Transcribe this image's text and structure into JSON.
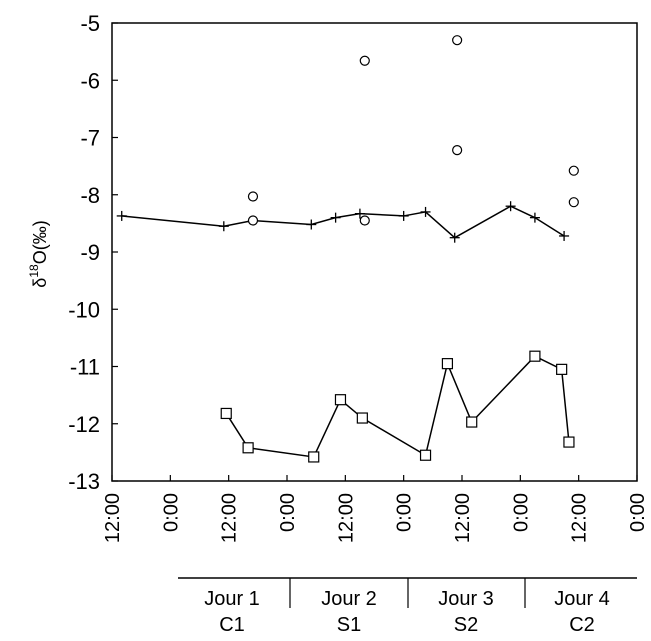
{
  "chart_data": {
    "type": "scatter",
    "ylabel_parts": {
      "delta": "δ",
      "sup": "18",
      "rest": "O(‰)"
    },
    "ylim": [
      -13,
      -5
    ],
    "y_ticks": [
      -5,
      -6,
      -7,
      -8,
      -9,
      -10,
      -11,
      -12,
      -13
    ],
    "x_range_hours": [
      0,
      108
    ],
    "x_tick_labels": [
      "12:00",
      "0:00",
      "12:00",
      "0:00",
      "12:00",
      "0:00",
      "12:00",
      "0:00",
      "12:00",
      "0:00"
    ],
    "groups": [
      {
        "line1": "Jour 1",
        "line2": "C1"
      },
      {
        "line1": "Jour 2",
        "line2": "S1"
      },
      {
        "line1": "Jour 3",
        "line2": "S2"
      },
      {
        "line1": "Jour 4",
        "line2": "C2"
      }
    ],
    "series": [
      {
        "marker": "plus",
        "line": true,
        "points": [
          {
            "x": 2,
            "y": -8.37
          },
          {
            "x": 23,
            "y": -8.55
          },
          {
            "x": 29,
            "y": -8.45
          },
          {
            "x": 41,
            "y": -8.52
          },
          {
            "x": 46,
            "y": -8.4
          },
          {
            "x": 51,
            "y": -8.33
          },
          {
            "x": 60,
            "y": -8.37
          },
          {
            "x": 64.5,
            "y": -8.3
          },
          {
            "x": 70.5,
            "y": -8.75
          },
          {
            "x": 82,
            "y": -8.2
          },
          {
            "x": 87,
            "y": -8.4
          },
          {
            "x": 93,
            "y": -8.72
          }
        ]
      },
      {
        "marker": "circle",
        "line": false,
        "points": [
          {
            "x": 29,
            "y": -8.03
          },
          {
            "x": 29,
            "y": -8.45
          },
          {
            "x": 52,
            "y": -5.66
          },
          {
            "x": 52,
            "y": -8.45
          },
          {
            "x": 71,
            "y": -5.3
          },
          {
            "x": 71,
            "y": -7.22
          },
          {
            "x": 95,
            "y": -7.58
          },
          {
            "x": 95,
            "y": -8.13
          }
        ]
      },
      {
        "marker": "square",
        "line": true,
        "points": [
          {
            "x": 23.5,
            "y": -11.82
          },
          {
            "x": 28,
            "y": -12.42
          },
          {
            "x": 41.5,
            "y": -12.58
          },
          {
            "x": 47,
            "y": -11.58
          },
          {
            "x": 51.5,
            "y": -11.9
          },
          {
            "x": 64.5,
            "y": -12.55
          },
          {
            "x": 69,
            "y": -10.95
          },
          {
            "x": 74,
            "y": -11.97
          },
          {
            "x": 87,
            "y": -10.82
          },
          {
            "x": 92.5,
            "y": -11.05
          },
          {
            "x": 94,
            "y": -12.32
          }
        ]
      }
    ]
  }
}
